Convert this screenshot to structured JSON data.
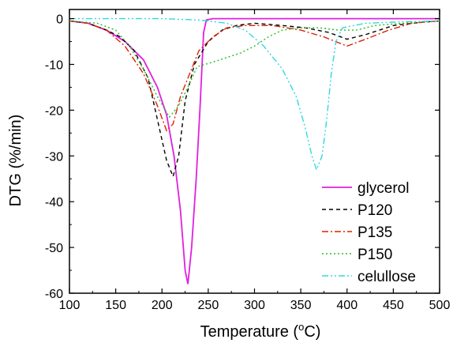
{
  "chart_data": {
    "type": "line",
    "title": "",
    "xlabel_main": "Temperature (",
    "xlabel_sup": "o",
    "xlabel_end": "C)",
    "ylabel": "DTG (%/min)",
    "xlim": [
      100,
      500
    ],
    "ylim": [
      -60,
      2
    ],
    "x_ticks": [
      100,
      150,
      200,
      250,
      300,
      350,
      400,
      450,
      500
    ],
    "y_ticks": [
      0,
      -10,
      -20,
      -30,
      -40,
      -50,
      -60
    ],
    "legend_position": "bottom-right",
    "series": [
      {
        "name": "glycerol",
        "color": "#e020e0",
        "dash": "solid",
        "points": [
          [
            100,
            -0.5
          ],
          [
            120,
            -1
          ],
          [
            140,
            -2.5
          ],
          [
            160,
            -5
          ],
          [
            180,
            -9
          ],
          [
            195,
            -15
          ],
          [
            205,
            -21
          ],
          [
            213,
            -30
          ],
          [
            220,
            -42
          ],
          [
            225,
            -55
          ],
          [
            228,
            -58
          ],
          [
            232,
            -50
          ],
          [
            237,
            -35
          ],
          [
            241,
            -20
          ],
          [
            245,
            -3
          ],
          [
            248,
            -0.3
          ],
          [
            255,
            0
          ],
          [
            300,
            0
          ],
          [
            400,
            0
          ],
          [
            500,
            0
          ]
        ]
      },
      {
        "name": "P120",
        "color": "#000000",
        "dash": "5,4",
        "points": [
          [
            100,
            -0.5
          ],
          [
            120,
            -1
          ],
          [
            140,
            -2.5
          ],
          [
            155,
            -4
          ],
          [
            170,
            -7
          ],
          [
            185,
            -13
          ],
          [
            195,
            -22
          ],
          [
            205,
            -31
          ],
          [
            212,
            -34.5
          ],
          [
            218,
            -30
          ],
          [
            225,
            -18
          ],
          [
            235,
            -10
          ],
          [
            250,
            -5
          ],
          [
            265,
            -2.5
          ],
          [
            280,
            -1.5
          ],
          [
            300,
            -1
          ],
          [
            330,
            -1.5
          ],
          [
            355,
            -2
          ],
          [
            380,
            -3
          ],
          [
            400,
            -4.5
          ],
          [
            420,
            -3.5
          ],
          [
            450,
            -1.5
          ],
          [
            480,
            -0.8
          ],
          [
            500,
            -0.5
          ]
        ]
      },
      {
        "name": "P135",
        "color": "#e02000",
        "dash": "8,3,2,3",
        "points": [
          [
            100,
            -0.5
          ],
          [
            120,
            -1
          ],
          [
            140,
            -2.5
          ],
          [
            160,
            -6
          ],
          [
            180,
            -12
          ],
          [
            195,
            -19
          ],
          [
            205,
            -24.5
          ],
          [
            212,
            -23
          ],
          [
            220,
            -17
          ],
          [
            230,
            -12
          ],
          [
            240,
            -7
          ],
          [
            255,
            -4
          ],
          [
            270,
            -2
          ],
          [
            290,
            -1.5
          ],
          [
            320,
            -1.5
          ],
          [
            350,
            -2.5
          ],
          [
            375,
            -4
          ],
          [
            400,
            -6
          ],
          [
            420,
            -4.5
          ],
          [
            445,
            -2.5
          ],
          [
            470,
            -1
          ],
          [
            500,
            -0.5
          ]
        ]
      },
      {
        "name": "P150",
        "color": "#20c020",
        "dash": "2,3",
        "points": [
          [
            100,
            -0.5
          ],
          [
            130,
            -1
          ],
          [
            150,
            -2.5
          ],
          [
            165,
            -6
          ],
          [
            180,
            -11
          ],
          [
            195,
            -17
          ],
          [
            208,
            -21.5
          ],
          [
            218,
            -19
          ],
          [
            228,
            -15
          ],
          [
            238,
            -10.5
          ],
          [
            255,
            -9.5
          ],
          [
            270,
            -8.5
          ],
          [
            285,
            -7.5
          ],
          [
            300,
            -6
          ],
          [
            315,
            -4
          ],
          [
            330,
            -2.5
          ],
          [
            350,
            -2
          ],
          [
            370,
            -2
          ],
          [
            390,
            -2.5
          ],
          [
            410,
            -2.5
          ],
          [
            430,
            -1.5
          ],
          [
            460,
            -1
          ],
          [
            500,
            -0.5
          ]
        ]
      },
      {
        "name": "celullose",
        "color": "#30d8e0",
        "dash": "8,3,2,3,2,3",
        "points": [
          [
            100,
            0
          ],
          [
            200,
            0
          ],
          [
            240,
            -0.3
          ],
          [
            270,
            -1
          ],
          [
            290,
            -2.5
          ],
          [
            310,
            -6
          ],
          [
            330,
            -11
          ],
          [
            345,
            -17
          ],
          [
            355,
            -24
          ],
          [
            362,
            -30
          ],
          [
            367,
            -33
          ],
          [
            373,
            -30
          ],
          [
            378,
            -22
          ],
          [
            383,
            -12
          ],
          [
            388,
            -5
          ],
          [
            395,
            -2
          ],
          [
            420,
            -1
          ],
          [
            460,
            -0.7
          ],
          [
            500,
            -0.5
          ]
        ]
      }
    ]
  }
}
